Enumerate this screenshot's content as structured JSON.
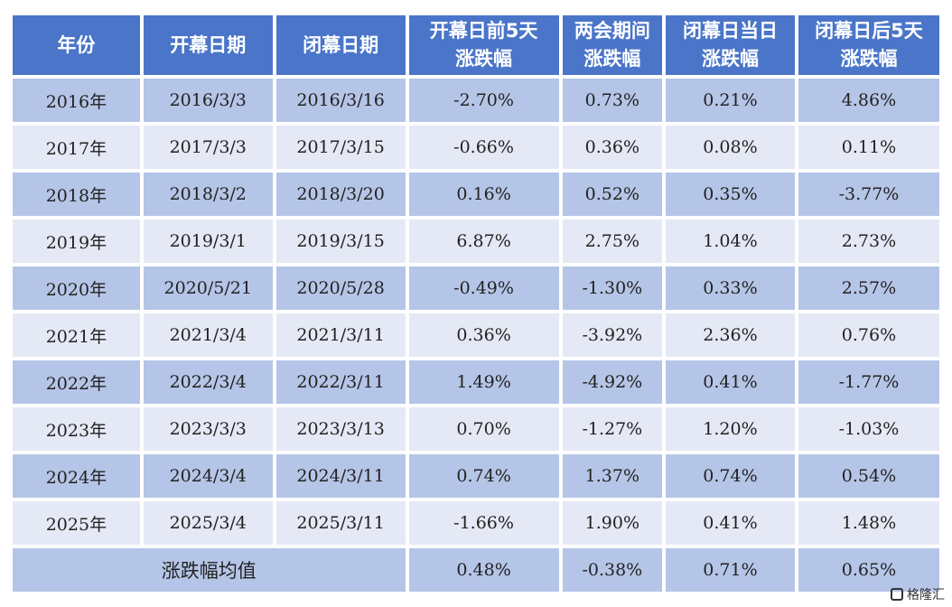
{
  "chart_data": {
    "type": "table",
    "columns": [
      "年份",
      "开幕日期",
      "闭幕日期",
      "开幕日前5天\n涨跌幅",
      "两会期间\n涨跌幅",
      "闭幕日当日\n涨跌幅",
      "闭幕日后5天\n涨跌幅"
    ],
    "rows": [
      [
        "2016年",
        "2016/3/3",
        "2016/3/16",
        "-2.70%",
        "0.73%",
        "0.21%",
        "4.86%"
      ],
      [
        "2017年",
        "2017/3/3",
        "2017/3/15",
        "-0.66%",
        "0.36%",
        "0.08%",
        "0.11%"
      ],
      [
        "2018年",
        "2018/3/2",
        "2018/3/20",
        "0.16%",
        "0.52%",
        "0.35%",
        "-3.77%"
      ],
      [
        "2019年",
        "2019/3/1",
        "2019/3/15",
        "6.87%",
        "2.75%",
        "1.04%",
        "2.73%"
      ],
      [
        "2020年",
        "2020/5/21",
        "2020/5/28",
        "-0.49%",
        "-1.30%",
        "0.33%",
        "2.57%"
      ],
      [
        "2021年",
        "2021/3/4",
        "2021/3/11",
        "0.36%",
        "-3.92%",
        "2.36%",
        "0.76%"
      ],
      [
        "2022年",
        "2022/3/4",
        "2022/3/11",
        "1.49%",
        "-4.92%",
        "0.41%",
        "-1.77%"
      ],
      [
        "2023年",
        "2023/3/3",
        "2023/3/13",
        "0.70%",
        "-1.27%",
        "1.20%",
        "-1.03%"
      ],
      [
        "2024年",
        "2024/3/4",
        "2024/3/11",
        "0.74%",
        "1.37%",
        "0.74%",
        "0.54%"
      ],
      [
        "2025年",
        "2025/3/4",
        "2025/3/11",
        "-1.66%",
        "1.90%",
        "0.41%",
        "1.48%"
      ]
    ],
    "average_row": {
      "label": "涨跌幅均值",
      "values": [
        "0.48%",
        "-0.38%",
        "0.71%",
        "0.65%"
      ]
    }
  },
  "colors": {
    "header_bg": "#4a75c9",
    "row_dark": "#b5c5e7",
    "row_light": "#e4e9f5"
  },
  "watermark": {
    "text": "格隆汇",
    "icon": "logo-g-icon"
  }
}
